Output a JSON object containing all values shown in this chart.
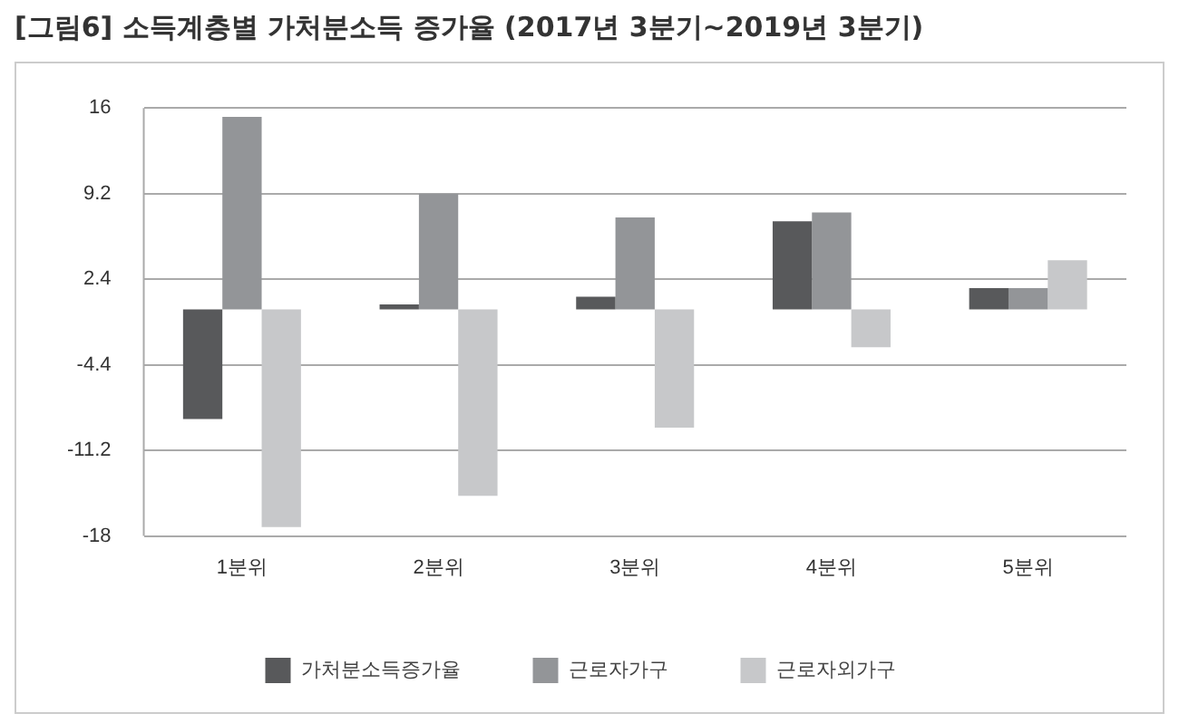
{
  "chart_data": {
    "type": "bar",
    "title": "[그림6] 소득계층별 가처분소득 증가율 (2017년 3분기~2019년 3분기)",
    "categories": [
      "1분위",
      "2분위",
      "3분위",
      "4분위",
      "5분위"
    ],
    "series": [
      {
        "name": "가처분소득증가율",
        "color": "#58595b",
        "values": [
          -8.7,
          0.4,
          1.0,
          7.0,
          1.7
        ]
      },
      {
        "name": "근로자가구",
        "color": "#939598",
        "values": [
          15.3,
          9.2,
          7.3,
          7.7,
          1.7
        ]
      },
      {
        "name": "근로자외가구",
        "color": "#c7c8ca",
        "values": [
          -17.3,
          -14.8,
          -9.4,
          -3.0,
          3.9
        ]
      }
    ],
    "ylim": [
      -18,
      16
    ],
    "yticks": [
      -18,
      -11.2,
      -4.4,
      2.4,
      9.2,
      16
    ],
    "grid": "y",
    "legend": "bottom"
  }
}
